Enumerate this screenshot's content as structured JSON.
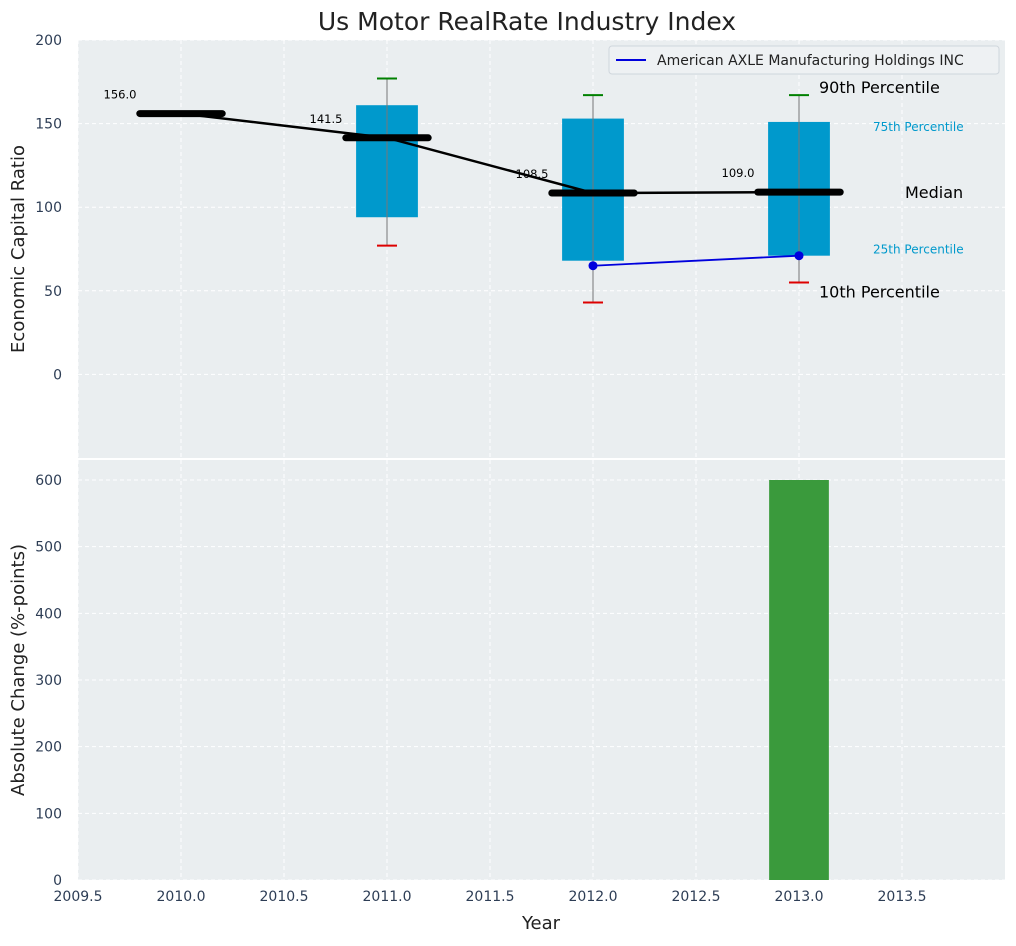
{
  "chart_data": {
    "title": "Us Motor RealRate Industry Index",
    "type": "box",
    "xlabel": "Year",
    "xlim": [
      2009.5,
      2014.0
    ],
    "x_ticks": [
      2009.5,
      2010.0,
      2010.5,
      2011.0,
      2011.5,
      2012.0,
      2012.5,
      2013.0,
      2013.5
    ],
    "x_tick_labels": [
      "2009.5",
      "2010.0",
      "2010.5",
      "2011.0",
      "2011.5",
      "2012.0",
      "2012.5",
      "2013.0",
      "2013.5"
    ],
    "grid": true,
    "legend_position": "top-right",
    "top_panel": {
      "ylabel": "Economic Capital Ratio",
      "ylim": [
        -50,
        200
      ],
      "y_ticks": [
        0,
        50,
        100,
        150,
        200
      ],
      "boxes": [
        {
          "x": 2011.0,
          "p25": 94,
          "p75": 161
        },
        {
          "x": 2012.0,
          "p25": 68,
          "p75": 153
        },
        {
          "x": 2013.0,
          "p25": 71,
          "p75": 151
        }
      ],
      "whiskers": [
        {
          "x": 2011.0,
          "p10": 77,
          "p90": 177
        },
        {
          "x": 2012.0,
          "p10": 43,
          "p90": 167
        },
        {
          "x": 2013.0,
          "p10": 55,
          "p90": 167
        }
      ],
      "medians": [
        {
          "x": 2010.0,
          "value": 156.0,
          "label": "156.0"
        },
        {
          "x": 2011.0,
          "value": 141.5,
          "label": "141.5"
        },
        {
          "x": 2012.0,
          "value": 108.5,
          "label": "108.5"
        },
        {
          "x": 2013.0,
          "value": 109.0,
          "label": "109.0"
        }
      ],
      "series": [
        {
          "name": "American AXLE Manufacturing Holdings INC",
          "color": "#0000dd",
          "points": [
            {
              "x": 2012.0,
              "y": 65
            },
            {
              "x": 2013.0,
              "y": 71
            }
          ]
        }
      ],
      "annotations": {
        "p90": "90th Percentile",
        "p75": "75th Percentile",
        "median": "Median",
        "p25": "25th Percentile",
        "p10": "10th Percentile"
      }
    },
    "bottom_panel": {
      "ylabel": "Absolute Change (%-points)",
      "ylim": [
        0,
        630
      ],
      "y_ticks": [
        0,
        100,
        200,
        300,
        400,
        500,
        600
      ],
      "bars": [
        {
          "x": 2013.0,
          "value": 600
        }
      ]
    },
    "colors": {
      "box": "#0099cc",
      "median": "#000000",
      "p90_cap": "#008000",
      "p10_cap": "#dd0000",
      "bar": "#3a9a3c",
      "series": "#0000dd",
      "panel_bg": "#eaeef0",
      "annotation_blue": "#0099cc"
    }
  }
}
